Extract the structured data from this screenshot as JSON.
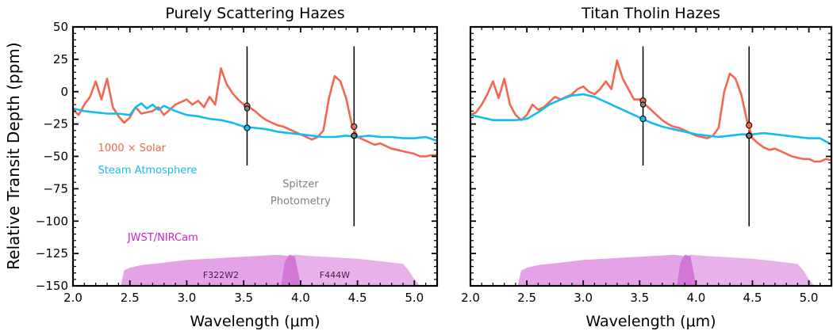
{
  "figure": {
    "ylabel": "Relative Transit Depth (ppm)"
  },
  "colors": {
    "solar": "#f26750",
    "steam": "#14bbef",
    "nircam": "#cc22cc",
    "nircam_fill": "#e3a3e6",
    "nircam_overlap": "#d475d8",
    "spitzer_text": "#808080"
  },
  "chart_data": [
    {
      "type": "line",
      "title": "Purely Scattering Hazes",
      "xlabel": "Wavelength (μm)",
      "ylabel": "Relative Transit Depth (ppm)",
      "xlim": [
        2.0,
        5.2
      ],
      "ylim": [
        -150,
        50
      ],
      "xticks": [
        2.0,
        2.5,
        3.0,
        3.5,
        4.0,
        4.5,
        5.0
      ],
      "yticks": [
        -150,
        -125,
        -100,
        -75,
        -50,
        -25,
        0,
        25,
        50
      ],
      "grid": false,
      "series": [
        {
          "name": "1000 × Solar",
          "color": "#f26750",
          "x": [
            2.0,
            2.05,
            2.1,
            2.15,
            2.2,
            2.25,
            2.3,
            2.35,
            2.4,
            2.45,
            2.5,
            2.55,
            2.6,
            2.65,
            2.7,
            2.75,
            2.8,
            2.85,
            2.9,
            2.95,
            3.0,
            3.05,
            3.1,
            3.15,
            3.2,
            3.25,
            3.3,
            3.35,
            3.4,
            3.45,
            3.5,
            3.55,
            3.6,
            3.65,
            3.7,
            3.75,
            3.8,
            3.85,
            3.9,
            3.95,
            4.0,
            4.05,
            4.1,
            4.15,
            4.2,
            4.25,
            4.3,
            4.35,
            4.4,
            4.45,
            4.5,
            4.55,
            4.6,
            4.65,
            4.7,
            4.75,
            4.8,
            4.85,
            4.9,
            4.95,
            5.0,
            5.05,
            5.1,
            5.15,
            5.2
          ],
          "y": [
            -14,
            -18,
            -10,
            -4,
            8,
            -6,
            10,
            -12,
            -19,
            -24,
            -20,
            -12,
            -17,
            -16,
            -15,
            -12,
            -18,
            -14,
            -10,
            -8,
            -6,
            -10,
            -7,
            -12,
            -4,
            -10,
            18,
            6,
            -1,
            -6,
            -10,
            -12,
            -15,
            -19,
            -22,
            -24,
            -26,
            -27,
            -29,
            -31,
            -33,
            -35,
            -37,
            -35,
            -30,
            -5,
            12,
            8,
            -5,
            -25,
            -35,
            -37,
            -39,
            -41,
            -40,
            -42,
            -44,
            -45,
            -46,
            -47,
            -48,
            -50,
            -50,
            -49,
            -49
          ],
          "markers": [
            {
              "x": 3.53,
              "y": -11
            },
            {
              "x": 4.47,
              "y": -27
            }
          ]
        },
        {
          "name": "Steam Atmosphere",
          "color": "#14bbef",
          "x": [
            2.0,
            2.1,
            2.2,
            2.3,
            2.4,
            2.5,
            2.55,
            2.6,
            2.65,
            2.7,
            2.75,
            2.8,
            2.9,
            3.0,
            3.1,
            3.2,
            3.3,
            3.4,
            3.5,
            3.6,
            3.7,
            3.8,
            3.9,
            4.0,
            4.1,
            4.2,
            4.3,
            4.4,
            4.5,
            4.6,
            4.7,
            4.8,
            4.9,
            5.0,
            5.1,
            5.2
          ],
          "y": [
            -13,
            -15,
            -16,
            -17,
            -17,
            -18,
            -12,
            -9,
            -13,
            -10,
            -14,
            -11,
            -15,
            -18,
            -19,
            -21,
            -22,
            -24,
            -27,
            -28,
            -29,
            -31,
            -32,
            -33,
            -34,
            -35,
            -35,
            -34,
            -35,
            -34,
            -35,
            -35,
            -36,
            -36,
            -35,
            -38
          ],
          "markers": [
            {
              "x": 3.53,
              "y": -28
            },
            {
              "x": 4.47,
              "y": -34
            }
          ]
        }
      ],
      "spitzer_markers": [
        {
          "x": 3.53,
          "y": -13
        },
        {
          "x": 4.47,
          "y": -34
        }
      ],
      "spitzer_bars": [
        {
          "x": 3.53,
          "y_low": -57,
          "y_high": 35
        },
        {
          "x": 4.47,
          "y_low": -104,
          "y_high": 35
        }
      ],
      "filters": [
        {
          "name": "F322W2",
          "x": [
            2.42,
            2.45,
            2.5,
            2.6,
            2.8,
            3.0,
            3.2,
            3.4,
            3.6,
            3.8,
            3.9,
            3.95,
            4.0
          ],
          "y": [
            -150,
            -138,
            -136,
            -134,
            -132,
            -130,
            -129,
            -128,
            -127,
            -126,
            -127,
            -140,
            -150
          ]
        },
        {
          "name": "F444W",
          "x": [
            3.83,
            3.88,
            3.95,
            4.1,
            4.3,
            4.5,
            4.7,
            4.9,
            4.95,
            5.0,
            5.05
          ],
          "y": [
            -150,
            -128,
            -126,
            -127,
            -128,
            -129,
            -131,
            -133,
            -138,
            -145,
            -150
          ]
        }
      ],
      "annotations": {
        "solar_label": "1000 × Solar",
        "steam_label": "Steam Atmosphere",
        "spitzer_line1": "Spitzer",
        "spitzer_line2": "Photometry",
        "nircam_label": "JWST/NIRCam",
        "filter1": "F322W2",
        "filter2": "F444W"
      }
    },
    {
      "type": "line",
      "title": "Titan Tholin Hazes",
      "xlabel": "Wavelength (μm)",
      "xlim": [
        2.0,
        5.2
      ],
      "ylim": [
        -150,
        50
      ],
      "xticks": [
        2.0,
        2.5,
        3.0,
        3.5,
        4.0,
        4.5,
        5.0
      ],
      "grid": false,
      "series": [
        {
          "name": "1000 × Solar",
          "color": "#f26750",
          "x": [
            2.0,
            2.05,
            2.1,
            2.15,
            2.2,
            2.25,
            2.3,
            2.35,
            2.4,
            2.45,
            2.5,
            2.55,
            2.6,
            2.65,
            2.7,
            2.75,
            2.8,
            2.85,
            2.9,
            2.95,
            3.0,
            3.05,
            3.1,
            3.15,
            3.2,
            3.25,
            3.3,
            3.35,
            3.4,
            3.45,
            3.5,
            3.55,
            3.6,
            3.65,
            3.7,
            3.75,
            3.8,
            3.85,
            3.9,
            3.95,
            4.0,
            4.05,
            4.1,
            4.15,
            4.2,
            4.25,
            4.3,
            4.35,
            4.4,
            4.45,
            4.5,
            4.55,
            4.6,
            4.65,
            4.7,
            4.75,
            4.8,
            4.85,
            4.9,
            4.95,
            5.0,
            5.05,
            5.1,
            5.15,
            5.2
          ],
          "y": [
            -18,
            -16,
            -10,
            -2,
            8,
            -5,
            10,
            -10,
            -18,
            -22,
            -18,
            -10,
            -14,
            -12,
            -8,
            -4,
            -6,
            -4,
            -2,
            2,
            4,
            0,
            -2,
            2,
            8,
            2,
            24,
            10,
            2,
            -6,
            -6,
            -10,
            -14,
            -18,
            -22,
            -25,
            -27,
            -28,
            -30,
            -32,
            -34,
            -35,
            -36,
            -34,
            -28,
            0,
            14,
            10,
            -2,
            -22,
            -36,
            -40,
            -43,
            -45,
            -44,
            -46,
            -48,
            -50,
            -51,
            -52,
            -52,
            -54,
            -54,
            -52,
            -53
          ],
          "markers": [
            {
              "x": 3.53,
              "y": -7
            },
            {
              "x": 4.47,
              "y": -26
            }
          ]
        },
        {
          "name": "Steam Atmosphere",
          "color": "#14bbef",
          "x": [
            2.0,
            2.1,
            2.2,
            2.3,
            2.4,
            2.5,
            2.6,
            2.7,
            2.8,
            2.9,
            3.0,
            3.1,
            3.2,
            3.3,
            3.4,
            3.5,
            3.6,
            3.7,
            3.8,
            3.9,
            4.0,
            4.1,
            4.2,
            4.3,
            4.4,
            4.5,
            4.6,
            4.7,
            4.8,
            4.9,
            5.0,
            5.1,
            5.2
          ],
          "y": [
            -18,
            -20,
            -22,
            -22,
            -22,
            -21,
            -16,
            -10,
            -6,
            -3,
            -2,
            -4,
            -8,
            -12,
            -16,
            -20,
            -24,
            -27,
            -29,
            -31,
            -33,
            -34,
            -35,
            -34,
            -33,
            -33,
            -32,
            -33,
            -34,
            -35,
            -36,
            -36,
            -41
          ],
          "markers": [
            {
              "x": 3.53,
              "y": -21
            },
            {
              "x": 4.47,
              "y": -34
            }
          ]
        }
      ],
      "spitzer_markers": [
        {
          "x": 3.53,
          "y": -10
        },
        {
          "x": 4.47,
          "y": -34
        }
      ],
      "spitzer_bars": [
        {
          "x": 3.53,
          "y_low": -57,
          "y_high": 35
        },
        {
          "x": 4.47,
          "y_low": -104,
          "y_high": 35
        }
      ],
      "filters": [
        {
          "name": "F322W2",
          "x": [
            2.42,
            2.45,
            2.5,
            2.6,
            2.8,
            3.0,
            3.2,
            3.4,
            3.6,
            3.8,
            3.9,
            3.95,
            4.0
          ],
          "y": [
            -150,
            -138,
            -136,
            -134,
            -132,
            -130,
            -129,
            -128,
            -127,
            -126,
            -127,
            -140,
            -150
          ]
        },
        {
          "name": "F444W",
          "x": [
            3.83,
            3.88,
            3.95,
            4.1,
            4.3,
            4.5,
            4.7,
            4.9,
            4.95,
            5.0,
            5.05
          ],
          "y": [
            -150,
            -128,
            -126,
            -127,
            -128,
            -129,
            -131,
            -133,
            -138,
            -145,
            -150
          ]
        }
      ]
    }
  ]
}
